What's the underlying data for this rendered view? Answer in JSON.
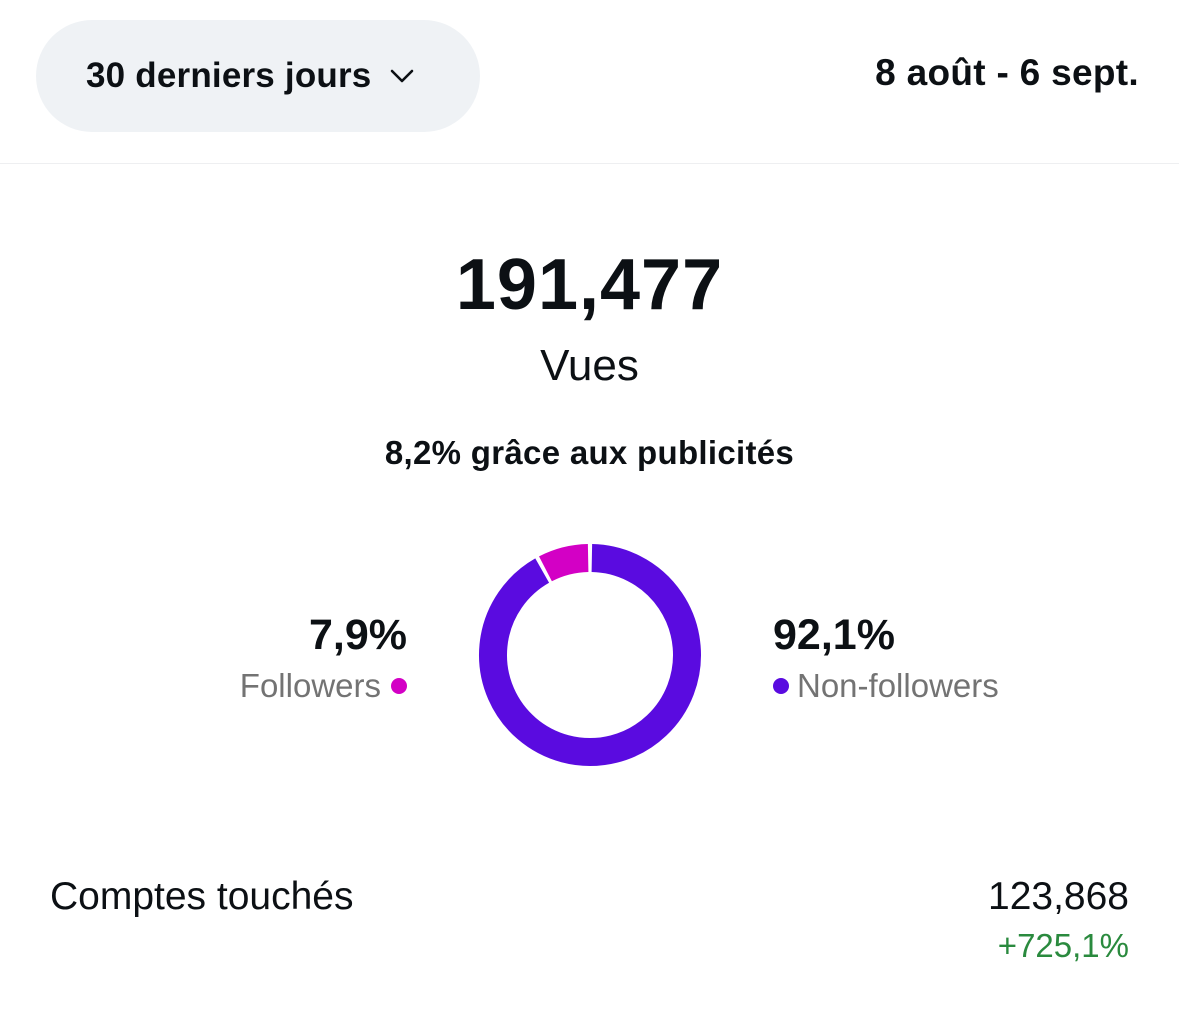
{
  "header": {
    "period_label": "30 derniers jours",
    "date_range": "8 août - 6 sept."
  },
  "main": {
    "metric_value": "191,477",
    "metric_label": "Vues",
    "ads_note": "8,2% grâce aux publicités"
  },
  "breakdown": {
    "followers": {
      "percent": "7,9%",
      "label": "Followers",
      "share": 0.079,
      "color": "#d300c5"
    },
    "non_followers": {
      "percent": "92,1%",
      "label": "Non-followers",
      "share": 0.921,
      "color": "#5a0be0"
    }
  },
  "accounts_reached": {
    "label": "Comptes touchés",
    "value": "123,868",
    "change": "+725,1%",
    "change_color": "#2a8a3e"
  }
}
